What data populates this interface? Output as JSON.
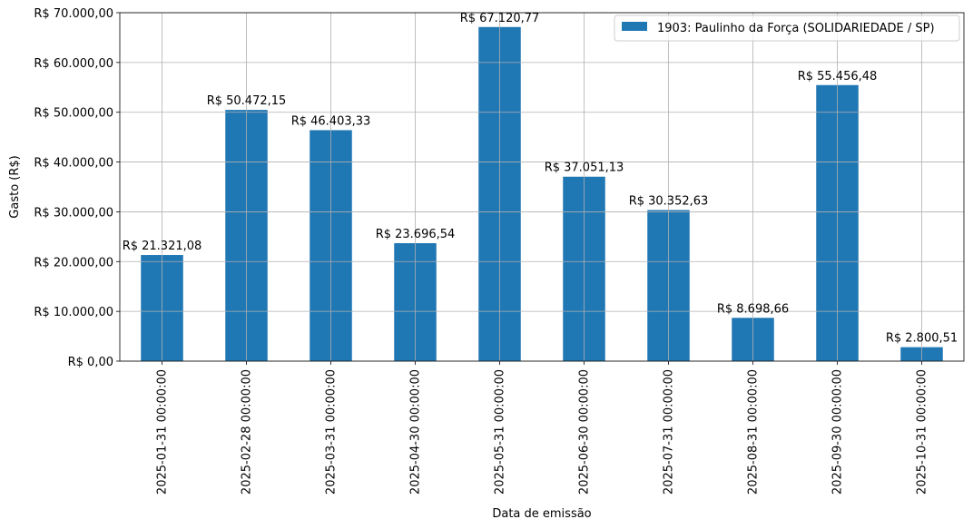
{
  "chart_data": {
    "type": "bar",
    "title": "",
    "xlabel": "Data de emissão",
    "ylabel": "Gasto (R$)",
    "categories": [
      "2025-01-31 00:00:00",
      "2025-02-28 00:00:00",
      "2025-03-31 00:00:00",
      "2025-04-30 00:00:00",
      "2025-05-31 00:00:00",
      "2025-06-30 00:00:00",
      "2025-07-31 00:00:00",
      "2025-08-31 00:00:00",
      "2025-09-30 00:00:00",
      "2025-10-31 00:00:00"
    ],
    "series": [
      {
        "name": "1903: Paulinho da Força (SOLIDARIEDADE / SP)",
        "color": "#1f77b4",
        "values": [
          21321.08,
          50472.15,
          46403.33,
          23696.54,
          67120.77,
          37051.13,
          30352.63,
          8698.66,
          55456.48,
          2800.51
        ],
        "data_labels": [
          "R$ 21.321,08",
          "R$ 50.472,15",
          "R$ 46.403,33",
          "R$ 23.696,54",
          "R$ 67.120,77",
          "R$ 37.051,13",
          "R$ 30.352,63",
          "R$ 8.698,66",
          "R$ 55.456,48",
          "R$ 2.800,51"
        ]
      }
    ],
    "ylim": [
      0,
      70000
    ],
    "yticks": [
      0,
      10000,
      20000,
      30000,
      40000,
      50000,
      60000,
      70000
    ],
    "ytick_labels": [
      "R$ 0,00",
      "R$ 10.000,00",
      "R$ 20.000,00",
      "R$ 30.000,00",
      "R$ 40.000,00",
      "R$ 50.000,00",
      "R$ 60.000,00",
      "R$ 70.000,00"
    ],
    "grid": true,
    "legend_position": "top-right"
  }
}
